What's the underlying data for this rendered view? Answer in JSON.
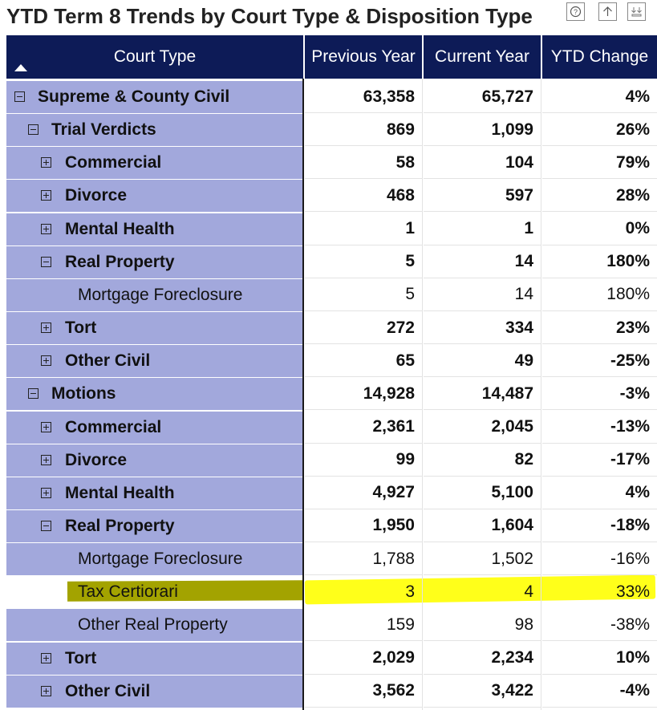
{
  "title": "YTD Term 8 Trends by Court Type & Disposition Type",
  "toolbar": {
    "help_icon": "help-icon",
    "drill_up_icon": "drill-up-icon",
    "expand_icon": "expand-hierarchy-icon"
  },
  "colors": {
    "header_bg": "#0d1b57",
    "first_col_bg": "#a2a8dc",
    "highlight_yellow": "#ffff1a",
    "highlight_olive": "#a3a300"
  },
  "columns": {
    "court_type": "Court Type",
    "previous_year": "Previous Year",
    "current_year": "Current Year",
    "ytd_change": "YTD Change",
    "sort": "ascending"
  },
  "rows": [
    {
      "label": "Supreme & County Civil",
      "prev": "63,358",
      "curr": "65,727",
      "change": "4%",
      "level": 0,
      "expander": "collapse",
      "bold": true
    },
    {
      "label": "Trial Verdicts",
      "prev": "869",
      "curr": "1,099",
      "change": "26%",
      "level": 1,
      "expander": "collapse",
      "bold": true
    },
    {
      "label": "Commercial",
      "prev": "58",
      "curr": "104",
      "change": "79%",
      "level": 2,
      "expander": "expand",
      "bold": true
    },
    {
      "label": "Divorce",
      "prev": "468",
      "curr": "597",
      "change": "28%",
      "level": 2,
      "expander": "expand",
      "bold": true
    },
    {
      "label": "Mental Health",
      "prev": "1",
      "curr": "1",
      "change": "0%",
      "level": 2,
      "expander": "expand",
      "bold": true
    },
    {
      "label": "Real Property",
      "prev": "5",
      "curr": "14",
      "change": "180%",
      "level": 2,
      "expander": "collapse",
      "bold": true
    },
    {
      "label": "Mortgage Foreclosure",
      "prev": "5",
      "curr": "14",
      "change": "180%",
      "level": 3,
      "expander": "none",
      "bold": false
    },
    {
      "label": "Tort",
      "prev": "272",
      "curr": "334",
      "change": "23%",
      "level": 2,
      "expander": "expand",
      "bold": true
    },
    {
      "label": "Other Civil",
      "prev": "65",
      "curr": "49",
      "change": "-25%",
      "level": 2,
      "expander": "expand",
      "bold": true
    },
    {
      "label": "Motions",
      "prev": "14,928",
      "curr": "14,487",
      "change": "-3%",
      "level": 1,
      "expander": "collapse",
      "bold": true
    },
    {
      "label": "Commercial",
      "prev": "2,361",
      "curr": "2,045",
      "change": "-13%",
      "level": 2,
      "expander": "expand",
      "bold": true
    },
    {
      "label": "Divorce",
      "prev": "99",
      "curr": "82",
      "change": "-17%",
      "level": 2,
      "expander": "expand",
      "bold": true
    },
    {
      "label": "Mental Health",
      "prev": "4,927",
      "curr": "5,100",
      "change": "4%",
      "level": 2,
      "expander": "expand",
      "bold": true
    },
    {
      "label": "Real Property",
      "prev": "1,950",
      "curr": "1,604",
      "change": "-18%",
      "level": 2,
      "expander": "collapse",
      "bold": true
    },
    {
      "label": "Mortgage Foreclosure",
      "prev": "1,788",
      "curr": "1,502",
      "change": "-16%",
      "level": 3,
      "expander": "none",
      "bold": false
    },
    {
      "label": "Tax Certiorari",
      "prev": "3",
      "curr": "4",
      "change": "33%",
      "level": 3,
      "expander": "none",
      "bold": false,
      "highlighted": true
    },
    {
      "label": "Other Real Property",
      "prev": "159",
      "curr": "98",
      "change": "-38%",
      "level": 3,
      "expander": "none",
      "bold": false
    },
    {
      "label": "Tort",
      "prev": "2,029",
      "curr": "2,234",
      "change": "10%",
      "level": 2,
      "expander": "expand",
      "bold": true
    },
    {
      "label": "Other Civil",
      "prev": "3,562",
      "curr": "3,422",
      "change": "-4%",
      "level": 2,
      "expander": "expand",
      "bold": true
    }
  ]
}
